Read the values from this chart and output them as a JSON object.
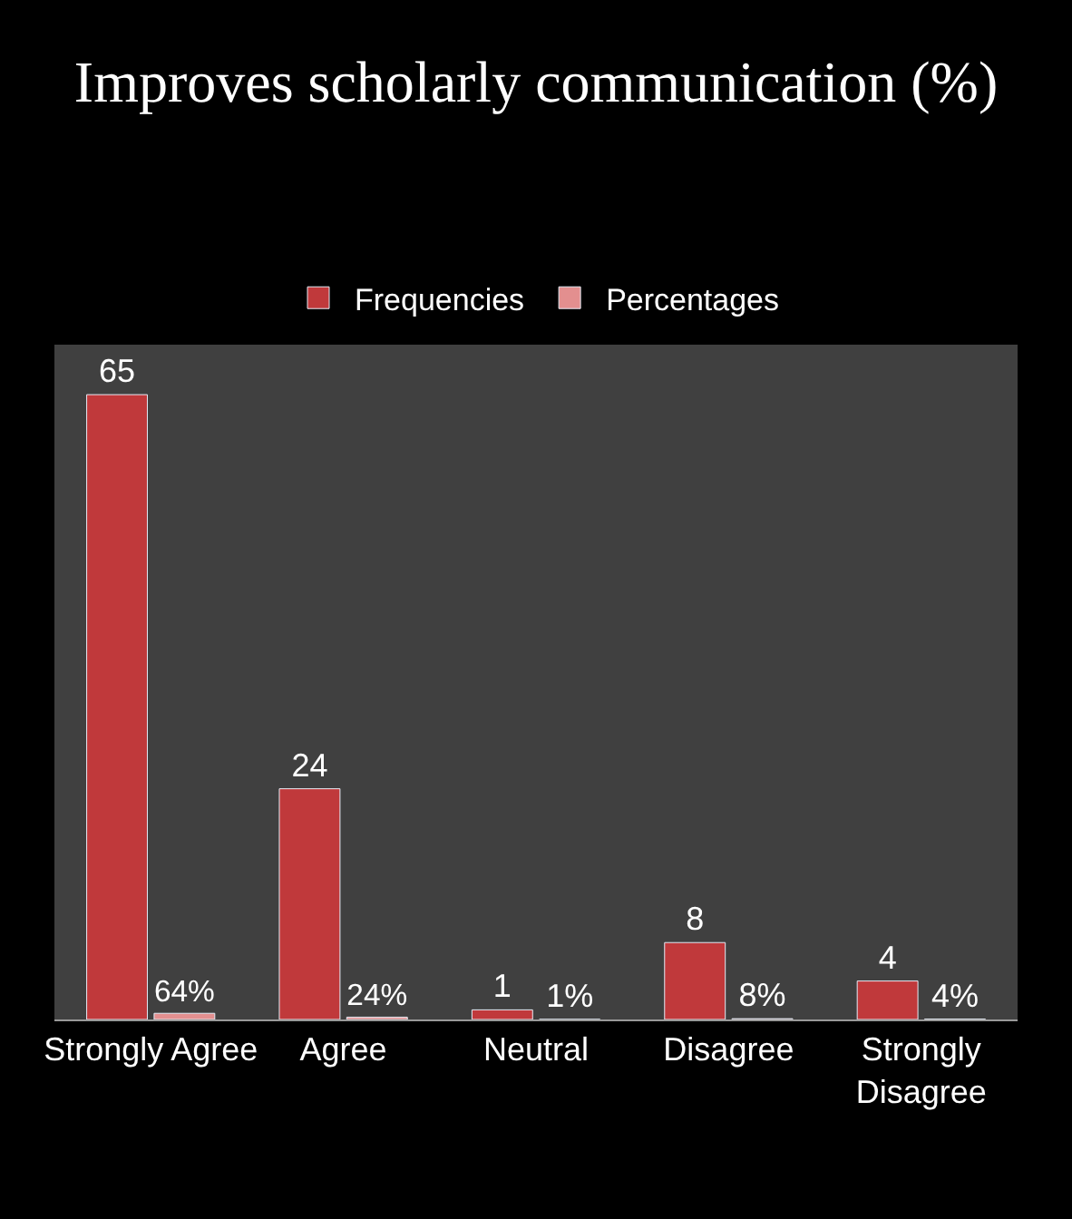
{
  "chart_data": {
    "type": "bar",
    "title": "Improves scholarly communication (%)",
    "categories": [
      "Strongly Agree",
      "Agree",
      "Neutral",
      "Disagree",
      "Strongly Disagree"
    ],
    "series": [
      {
        "name": "Frequencies",
        "color": "#c0393b",
        "values": [
          65,
          24,
          1,
          8,
          4
        ]
      },
      {
        "name": "Percentages",
        "color": "#e38f8f",
        "values": [
          0.64,
          0.24,
          0.01,
          0.08,
          0.04
        ],
        "value_labels": [
          "64%",
          "24%",
          "1%",
          "8%",
          "4%"
        ]
      }
    ],
    "data_labels": true,
    "legend": "top",
    "grid": false
  }
}
